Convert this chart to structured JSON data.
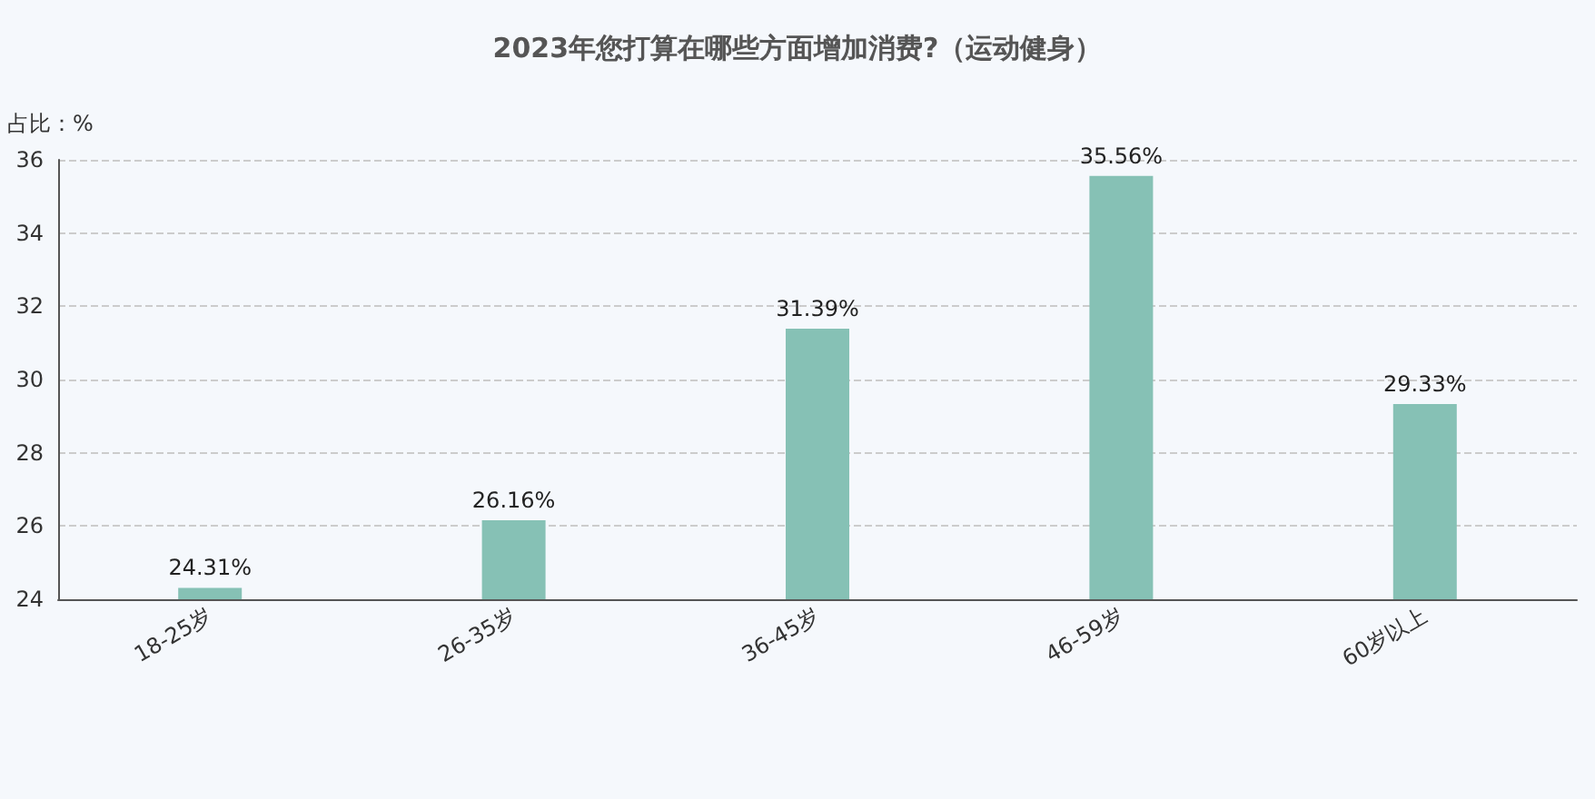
{
  "chart_data": {
    "type": "bar",
    "title": "2023年您打算在哪些方面增加消费?（运动健身）",
    "ylabel": "占比：%",
    "categories": [
      "18-25岁",
      "26-35岁",
      "36-45岁",
      "46-59岁",
      "60岁以上"
    ],
    "values": [
      24.31,
      26.16,
      31.39,
      35.56,
      29.33
    ],
    "value_labels": [
      "24.31%",
      "26.16%",
      "31.39%",
      "35.56%",
      "29.33%"
    ],
    "color": "#86c1b5",
    "ylim": [
      24,
      36
    ],
    "yticks": [
      24,
      26,
      28,
      30,
      32,
      34,
      36
    ],
    "grid": "y"
  }
}
